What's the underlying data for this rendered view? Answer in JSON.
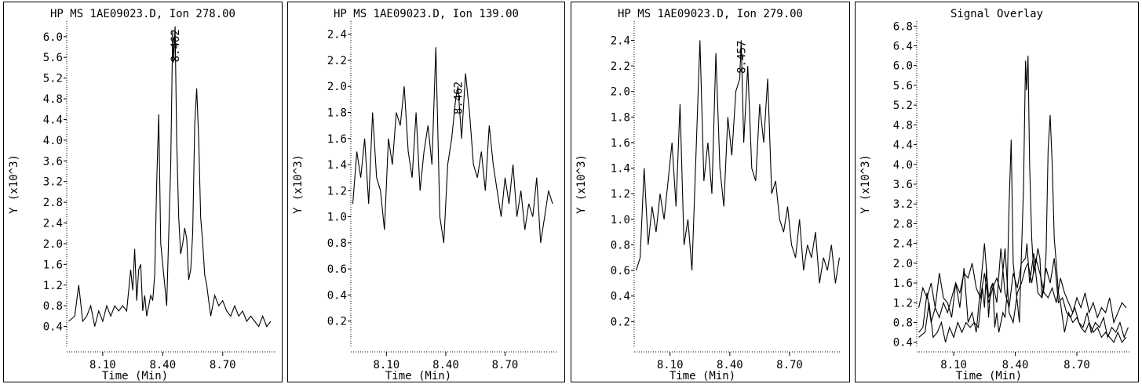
{
  "chart_data": [
    {
      "type": "line",
      "title": "HP MS 1AE09023.D, Ion 278.00",
      "xlabel": "Time (Min)",
      "ylabel": "Y (x10^3)",
      "xticks": [
        "8.10",
        "8.40",
        "8.70"
      ],
      "xtick_values": [
        8.1,
        8.4,
        8.7
      ],
      "yticks": [
        "0.4",
        "0.8",
        "1.2",
        "1.6",
        "2.0",
        "2.4",
        "2.8",
        "3.2",
        "3.6",
        "4.0",
        "4.4",
        "4.8",
        "5.2",
        "5.6",
        "6.0"
      ],
      "ytick_values": [
        0.4,
        0.8,
        1.2,
        1.6,
        2.0,
        2.4,
        2.8,
        3.2,
        3.6,
        4.0,
        4.4,
        4.8,
        5.2,
        5.6,
        6.0
      ],
      "xlim": [
        7.92,
        8.96
      ],
      "ylim": [
        0.0,
        6.3
      ],
      "peak_label": {
        "text": "8.462",
        "x": 8.462,
        "y": 6.1
      },
      "series": [
        {
          "x": [
            7.93,
            7.96,
            7.98,
            8.0,
            8.02,
            8.04,
            8.06,
            8.08,
            8.1,
            8.12,
            8.14,
            8.16,
            8.18,
            8.2,
            8.22,
            8.24,
            8.25,
            8.26,
            8.27,
            8.28,
            8.29,
            8.3,
            8.31,
            8.32,
            8.33,
            8.34,
            8.35,
            8.36,
            8.37,
            8.38,
            8.39,
            8.4,
            8.41,
            8.42,
            8.43,
            8.44,
            8.45,
            8.455,
            8.462,
            8.47,
            8.48,
            8.49,
            8.5,
            8.51,
            8.52,
            8.53,
            8.54,
            8.55,
            8.56,
            8.57,
            8.58,
            8.59,
            8.6,
            8.61,
            8.62,
            8.63,
            8.64,
            8.65,
            8.66,
            8.68,
            8.7,
            8.72,
            8.74,
            8.76,
            8.78,
            8.8,
            8.82,
            8.84,
            8.86,
            8.88,
            8.9,
            8.92,
            8.94
          ],
          "y": [
            0.5,
            0.6,
            1.2,
            0.5,
            0.6,
            0.8,
            0.4,
            0.7,
            0.5,
            0.8,
            0.6,
            0.8,
            0.7,
            0.8,
            0.7,
            1.5,
            1.1,
            1.9,
            0.9,
            1.5,
            1.6,
            0.7,
            1.0,
            0.6,
            0.8,
            1.0,
            0.9,
            1.4,
            3.2,
            4.5,
            2.0,
            1.6,
            1.2,
            0.8,
            2.2,
            3.5,
            6.1,
            5.5,
            6.2,
            4.0,
            2.5,
            1.8,
            2.0,
            2.3,
            2.1,
            1.3,
            1.5,
            2.2,
            4.3,
            5.0,
            4.0,
            2.5,
            2.0,
            1.4,
            1.2,
            0.9,
            0.6,
            0.8,
            1.0,
            0.8,
            0.9,
            0.7,
            0.6,
            0.8,
            0.6,
            0.7,
            0.5,
            0.6,
            0.5,
            0.4,
            0.6,
            0.4,
            0.5
          ]
        }
      ]
    },
    {
      "type": "line",
      "title": "HP MS 1AE09023.D, Ion 139.00",
      "xlabel": "Time (Min)",
      "ylabel": "Y (x10^3)",
      "xticks": [
        "8.10",
        "8.40",
        "8.70"
      ],
      "xtick_values": [
        8.1,
        8.4,
        8.7
      ],
      "yticks": [
        "0.2",
        "0.4",
        "0.6",
        "0.8",
        "1.0",
        "1.2",
        "1.4",
        "1.6",
        "1.8",
        "2.0",
        "2.2",
        "2.4"
      ],
      "ytick_values": [
        0.2,
        0.4,
        0.6,
        0.8,
        1.0,
        1.2,
        1.4,
        1.6,
        1.8,
        2.0,
        2.2,
        2.4
      ],
      "xlim": [
        7.92,
        8.96
      ],
      "ylim": [
        0.0,
        2.5
      ],
      "peak_label": {
        "text": "8.462",
        "x": 8.462,
        "y": 2.02
      },
      "series": [
        {
          "x": [
            7.93,
            7.95,
            7.97,
            7.99,
            8.01,
            8.03,
            8.05,
            8.07,
            8.09,
            8.11,
            8.13,
            8.15,
            8.17,
            8.19,
            8.21,
            8.23,
            8.25,
            8.27,
            8.29,
            8.31,
            8.33,
            8.35,
            8.37,
            8.39,
            8.41,
            8.43,
            8.45,
            8.462,
            8.48,
            8.5,
            8.52,
            8.54,
            8.56,
            8.58,
            8.6,
            8.62,
            8.64,
            8.66,
            8.68,
            8.7,
            8.72,
            8.74,
            8.76,
            8.78,
            8.8,
            8.82,
            8.84,
            8.86,
            8.88,
            8.9,
            8.92,
            8.94
          ],
          "y": [
            1.1,
            1.5,
            1.3,
            1.6,
            1.1,
            1.8,
            1.3,
            1.2,
            0.9,
            1.6,
            1.4,
            1.8,
            1.7,
            2.0,
            1.5,
            1.3,
            1.8,
            1.2,
            1.5,
            1.7,
            1.4,
            2.3,
            1.0,
            0.8,
            1.4,
            1.6,
            1.9,
            2.0,
            1.6,
            2.1,
            1.8,
            1.4,
            1.3,
            1.5,
            1.2,
            1.7,
            1.4,
            1.2,
            1.0,
            1.3,
            1.1,
            1.4,
            1.0,
            1.2,
            0.9,
            1.1,
            1.0,
            1.3,
            0.8,
            1.0,
            1.2,
            1.1
          ]
        }
      ]
    },
    {
      "type": "line",
      "title": "HP MS 1AE09023.D, Ion 279.00",
      "xlabel": "Time (Min)",
      "ylabel": "Y (x10^3)",
      "xticks": [
        "8.10",
        "8.40",
        "8.70"
      ],
      "xtick_values": [
        8.1,
        8.4,
        8.7
      ],
      "yticks": [
        "0.2",
        "0.4",
        "0.6",
        "0.8",
        "1.0",
        "1.2",
        "1.4",
        "1.6",
        "1.8",
        "2.0",
        "2.2",
        "2.4"
      ],
      "ytick_values": [
        0.2,
        0.4,
        0.6,
        0.8,
        1.0,
        1.2,
        1.4,
        1.6,
        1.8,
        2.0,
        2.2,
        2.4
      ],
      "xlim": [
        7.92,
        8.96
      ],
      "ylim": [
        0.0,
        2.55
      ],
      "peak_label": {
        "text": "8.457",
        "x": 8.457,
        "y": 2.38
      },
      "series": [
        {
          "x": [
            7.93,
            7.95,
            7.97,
            7.99,
            8.01,
            8.03,
            8.05,
            8.07,
            8.09,
            8.11,
            8.13,
            8.15,
            8.17,
            8.19,
            8.21,
            8.23,
            8.25,
            8.27,
            8.29,
            8.31,
            8.33,
            8.35,
            8.37,
            8.39,
            8.41,
            8.43,
            8.45,
            8.457,
            8.47,
            8.49,
            8.51,
            8.53,
            8.55,
            8.57,
            8.59,
            8.61,
            8.63,
            8.65,
            8.67,
            8.69,
            8.71,
            8.73,
            8.75,
            8.77,
            8.79,
            8.81,
            8.83,
            8.85,
            8.87,
            8.89,
            8.91,
            8.93,
            8.95
          ],
          "y": [
            0.6,
            0.7,
            1.4,
            0.8,
            1.1,
            0.9,
            1.2,
            1.0,
            1.3,
            1.6,
            1.1,
            1.9,
            0.8,
            1.0,
            0.6,
            1.5,
            2.4,
            1.3,
            1.6,
            1.2,
            2.3,
            1.4,
            1.1,
            1.8,
            1.5,
            2.0,
            2.1,
            2.4,
            1.6,
            2.2,
            1.4,
            1.3,
            1.9,
            1.6,
            2.1,
            1.2,
            1.3,
            1.0,
            0.9,
            1.1,
            0.8,
            0.7,
            1.0,
            0.6,
            0.8,
            0.7,
            0.9,
            0.5,
            0.7,
            0.6,
            0.8,
            0.5,
            0.7
          ]
        }
      ]
    },
    {
      "type": "line",
      "title": "Signal Overlay",
      "xlabel": "Time (Min)",
      "ylabel": "Y (x10^3)",
      "xticks": [
        "8.10",
        "8.40",
        "8.70"
      ],
      "xtick_values": [
        8.1,
        8.4,
        8.7
      ],
      "yticks": [
        "0.4",
        "0.8",
        "1.2",
        "1.6",
        "2.0",
        "2.4",
        "2.8",
        "3.2",
        "3.6",
        "4.0",
        "4.4",
        "4.8",
        "5.2",
        "5.6",
        "6.0",
        "6.4",
        "6.8"
      ],
      "ytick_values": [
        0.4,
        0.8,
        1.2,
        1.6,
        2.0,
        2.4,
        2.8,
        3.2,
        3.6,
        4.0,
        4.4,
        4.8,
        5.2,
        5.6,
        6.0,
        6.4,
        6.8
      ],
      "xlim": [
        7.92,
        8.96
      ],
      "ylim": [
        0.3,
        6.9
      ],
      "overlay_of": [
        0,
        1,
        2
      ]
    }
  ]
}
